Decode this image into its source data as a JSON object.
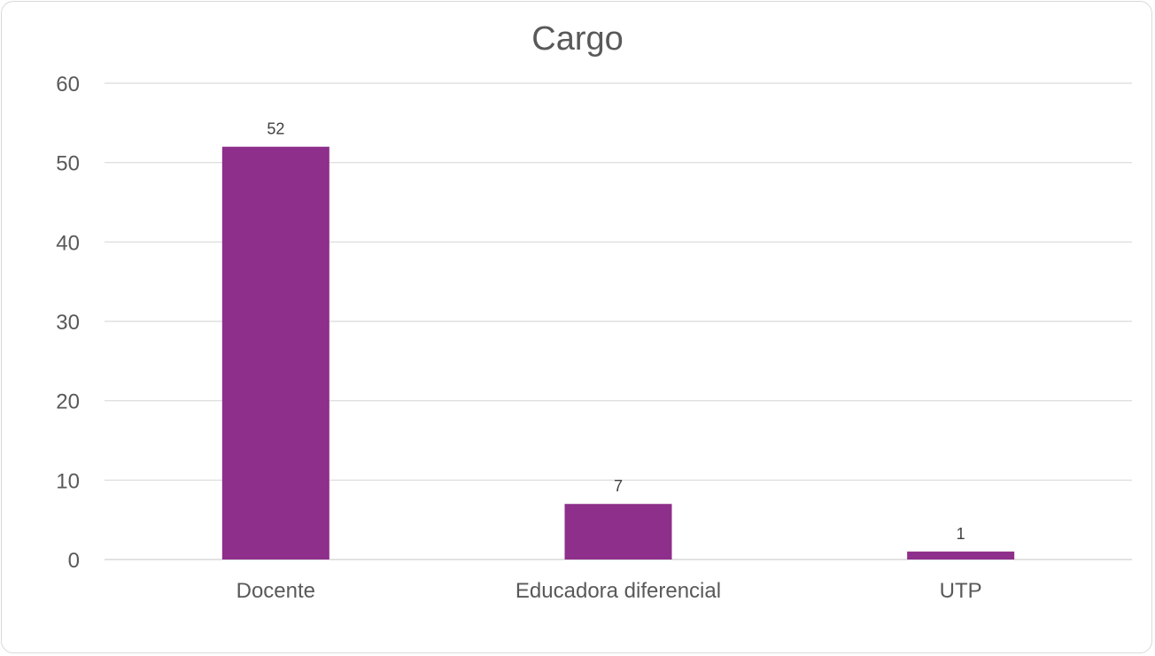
{
  "chart_data": {
    "type": "bar",
    "title": "Cargo",
    "xlabel": "",
    "ylabel": "",
    "categories": [
      "Docente",
      "Educadora diferencial",
      "UTP"
    ],
    "values": [
      52,
      7,
      1
    ],
    "data_labels": [
      "52",
      "7",
      "1"
    ],
    "ylim": [
      0,
      60
    ],
    "yticks": [
      0,
      10,
      20,
      30,
      40,
      50,
      60
    ],
    "grid": true,
    "legend": "none",
    "bar_color": "#8e2f8b",
    "grid_color": "#d9d9d9"
  }
}
